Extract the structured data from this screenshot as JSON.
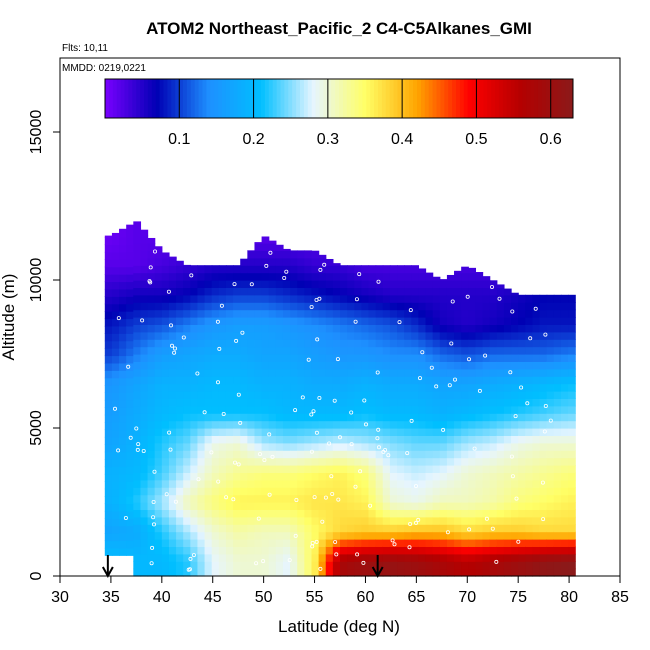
{
  "chart_data": {
    "type": "heatmap",
    "title": "ATOM2 Northeast_Pacific_2 C4-C5Alkanes_GMI",
    "subtitle_flights": "Flts: 10,11",
    "subtitle_dates": "MMDD: 0219,0221",
    "xlabel": "Latitude (deg N)",
    "ylabel": "Altitude (m)",
    "xlim": [
      30,
      85
    ],
    "ylim": [
      0,
      17500
    ],
    "x_ticks": [
      30,
      35,
      40,
      45,
      50,
      55,
      60,
      65,
      70,
      75,
      80,
      85
    ],
    "y_ticks": [
      0,
      5000,
      10000,
      15000
    ],
    "colorbar": {
      "min": 0.0,
      "max": 0.63,
      "ticks": [
        0.1,
        0.2,
        0.3,
        0.4,
        0.5,
        0.6
      ],
      "tick_labels": [
        "0.1",
        "0.2",
        "0.3",
        "0.4",
        "0.5",
        "0.6"
      ],
      "colors": [
        "#7a00ff",
        "#0000b4",
        "#1e90ff",
        "#00bfff",
        "#e6f5ff",
        "#ffff66",
        "#ffa500",
        "#ff0000",
        "#b40000",
        "#8b1a1a"
      ]
    },
    "arrows_latitude": [
      34.7,
      61.2
    ],
    "profile_latitudes": [
      35,
      37.5,
      40,
      42.5,
      45,
      47.5,
      50,
      52.5,
      55,
      57.5,
      60,
      62.5,
      65,
      67.5,
      70,
      72.5,
      75,
      77.5,
      80
    ],
    "profile_tops_m": [
      11500,
      12000,
      11000,
      10500,
      10500,
      10500,
      11500,
      11000,
      11000,
      10500,
      10500,
      10500,
      10500,
      10000,
      10500,
      10000,
      9500,
      9500,
      9500
    ],
    "altitude_bands_m": [
      0,
      1000,
      2000,
      3000,
      4000,
      5000,
      6000,
      7000,
      8000,
      9000,
      10000,
      11000
    ],
    "band_values": [
      [
        0.21,
        0.2,
        0.2,
        0.22,
        0.28,
        0.3,
        0.3,
        0.28,
        0.36,
        0.58,
        0.6,
        0.61,
        0.6,
        0.58,
        0.56,
        0.58,
        0.6,
        0.62,
        0.63
      ],
      [
        0.17,
        0.18,
        0.22,
        0.26,
        0.3,
        0.32,
        0.31,
        0.31,
        0.35,
        0.38,
        0.39,
        0.39,
        0.4,
        0.4,
        0.38,
        0.39,
        0.39,
        0.38,
        0.38
      ],
      [
        0.19,
        0.22,
        0.26,
        0.31,
        0.34,
        0.36,
        0.36,
        0.36,
        0.37,
        0.37,
        0.36,
        0.3,
        0.29,
        0.31,
        0.31,
        0.32,
        0.34,
        0.35,
        0.36
      ],
      [
        0.19,
        0.2,
        0.23,
        0.27,
        0.31,
        0.33,
        0.34,
        0.34,
        0.35,
        0.36,
        0.34,
        0.28,
        0.27,
        0.28,
        0.3,
        0.31,
        0.32,
        0.33,
        0.34
      ],
      [
        0.17,
        0.19,
        0.22,
        0.24,
        0.29,
        0.3,
        0.26,
        0.25,
        0.26,
        0.27,
        0.26,
        0.25,
        0.24,
        0.24,
        0.26,
        0.27,
        0.29,
        0.3,
        0.3
      ],
      [
        0.16,
        0.18,
        0.2,
        0.21,
        0.21,
        0.21,
        0.21,
        0.2,
        0.2,
        0.2,
        0.21,
        0.2,
        0.2,
        0.19,
        0.2,
        0.21,
        0.22,
        0.23,
        0.24
      ],
      [
        0.15,
        0.17,
        0.19,
        0.19,
        0.2,
        0.2,
        0.19,
        0.19,
        0.18,
        0.18,
        0.19,
        0.18,
        0.18,
        0.17,
        0.17,
        0.18,
        0.19,
        0.2,
        0.21
      ],
      [
        0.1,
        0.13,
        0.16,
        0.17,
        0.18,
        0.18,
        0.17,
        0.17,
        0.16,
        0.15,
        0.15,
        0.14,
        0.14,
        0.12,
        0.11,
        0.12,
        0.12,
        0.12,
        0.13
      ],
      [
        0.08,
        0.1,
        0.11,
        0.13,
        0.15,
        0.16,
        0.16,
        0.15,
        0.14,
        0.13,
        0.12,
        0.11,
        0.09,
        0.06,
        0.05,
        0.06,
        0.07,
        0.08,
        0.08
      ],
      [
        0.05,
        0.06,
        0.06,
        0.07,
        0.09,
        0.1,
        0.1,
        0.09,
        0.08,
        0.07,
        0.06,
        0.05,
        0.05,
        0.05,
        0.05,
        0.05,
        0.06,
        0.07,
        0.07
      ],
      [
        0.02,
        0.02,
        0.03,
        0.04,
        0.05,
        0.05,
        0.05,
        0.05,
        0.04,
        0.04,
        0.03,
        0.03,
        0.03,
        0.03,
        0.03,
        0.03,
        0.02,
        0.02,
        0.02
      ],
      [
        0.01,
        0.02,
        0.02,
        0.02,
        0.02,
        0.02,
        0.02,
        0.02,
        0.02,
        0.02,
        0.02,
        0.02,
        0.02,
        0.02,
        0.02,
        0.02,
        0.02,
        0.02,
        0.02
      ]
    ],
    "grid": false,
    "legend": "colorbar at top inside plot"
  }
}
